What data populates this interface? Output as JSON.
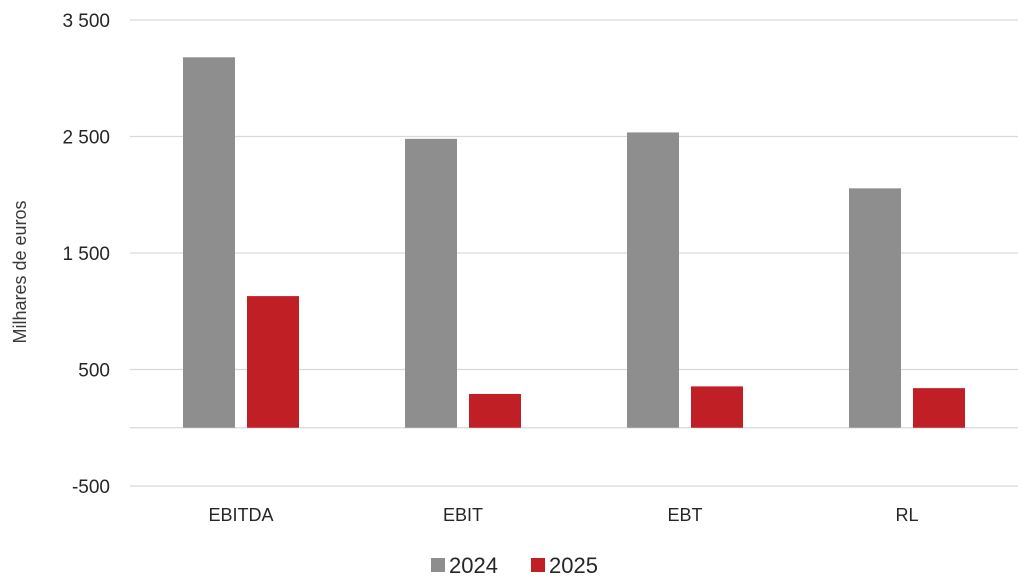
{
  "chart_data": {
    "type": "bar",
    "categories": [
      "EBITDA",
      "EBIT",
      "EBT",
      "RL"
    ],
    "series": [
      {
        "name": "2024",
        "values": [
          3180,
          2480,
          2535,
          2055
        ],
        "color": "#8f8e8e"
      },
      {
        "name": "2025",
        "values": [
          1130,
          290,
          355,
          340
        ],
        "color": "#c01f26"
      }
    ],
    "title": "",
    "xlabel": "",
    "ylabel": "Milhares de euros",
    "ylim": [
      -500,
      3500
    ],
    "yticks": [
      -500,
      500,
      1500,
      2500,
      3500
    ],
    "ytick_labels": [
      "-500",
      "500",
      "1 500",
      "2 500",
      "3 500"
    ],
    "grid": true,
    "legend_position": "bottom-center"
  }
}
